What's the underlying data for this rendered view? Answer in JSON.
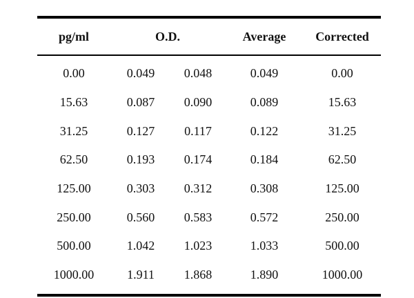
{
  "table": {
    "headers": {
      "concentration": "pg/ml",
      "od": "O.D.",
      "average": "Average",
      "corrected": "Corrected"
    },
    "rows": [
      {
        "conc": "0.00",
        "od1": "0.049",
        "od2": "0.048",
        "avg": "0.049",
        "corr": "0.00"
      },
      {
        "conc": "15.63",
        "od1": "0.087",
        "od2": "0.090",
        "avg": "0.089",
        "corr": "15.63"
      },
      {
        "conc": "31.25",
        "od1": "0.127",
        "od2": "0.117",
        "avg": "0.122",
        "corr": "31.25"
      },
      {
        "conc": "62.50",
        "od1": "0.193",
        "od2": "0.174",
        "avg": "0.184",
        "corr": "62.50"
      },
      {
        "conc": "125.00",
        "od1": "0.303",
        "od2": "0.312",
        "avg": "0.308",
        "corr": "125.00"
      },
      {
        "conc": "250.00",
        "od1": "0.560",
        "od2": "0.583",
        "avg": "0.572",
        "corr": "250.00"
      },
      {
        "conc": "500.00",
        "od1": "1.042",
        "od2": "1.023",
        "avg": "1.033",
        "corr": "500.00"
      },
      {
        "conc": "1000.00",
        "od1": "1.911",
        "od2": "1.868",
        "avg": "1.890",
        "corr": "1000.00"
      }
    ]
  }
}
